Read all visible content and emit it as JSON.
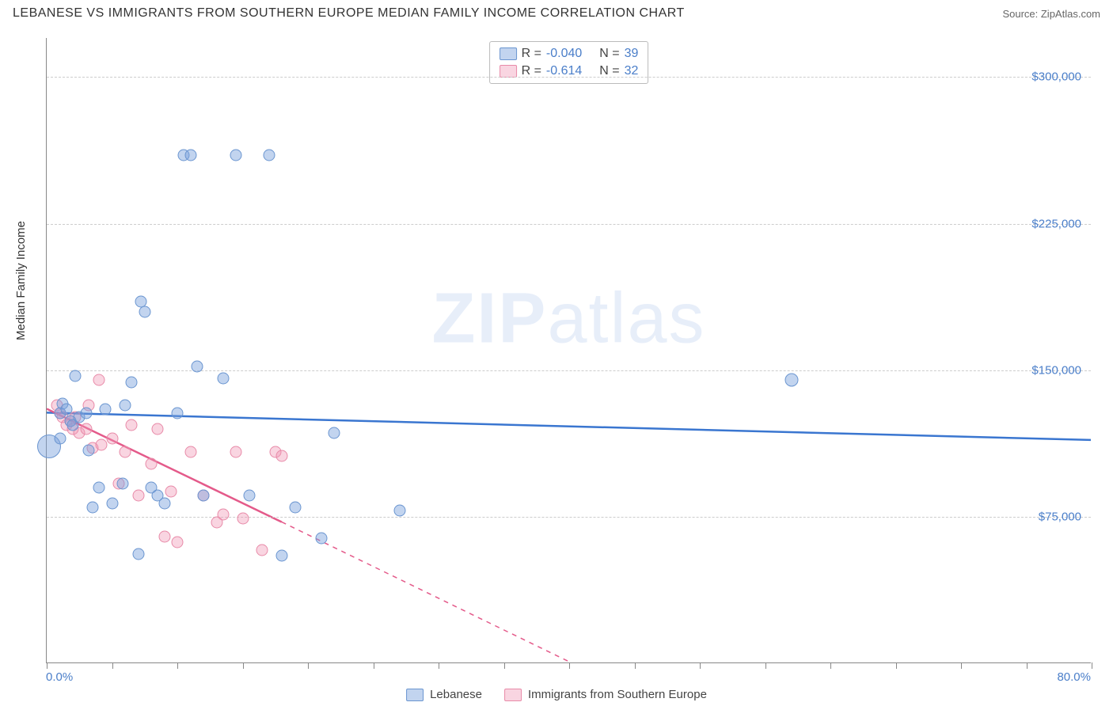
{
  "title": "LEBANESE VS IMMIGRANTS FROM SOUTHERN EUROPE MEDIAN FAMILY INCOME CORRELATION CHART",
  "source": "Source: ZipAtlas.com",
  "watermark_zip": "ZIP",
  "watermark_atlas": "atlas",
  "ylabel": "Median Family Income",
  "axes": {
    "xlim": [
      0,
      80
    ],
    "ylim": [
      0,
      320000
    ],
    "xticks_pct": [
      0,
      5,
      10,
      15,
      20,
      25,
      30,
      35,
      40,
      45,
      50,
      55,
      60,
      65,
      70,
      75,
      80
    ],
    "x_min_label": "0.0%",
    "x_max_label": "80.0%",
    "yticks": [
      {
        "value": 75000,
        "label": "$75,000"
      },
      {
        "value": 150000,
        "label": "$150,000"
      },
      {
        "value": 225000,
        "label": "$225,000"
      },
      {
        "value": 300000,
        "label": "$300,000"
      }
    ],
    "grid_color": "#cccccc",
    "border_color": "#888888",
    "tick_label_color": "#4a7ec9"
  },
  "legend_top": {
    "rows": [
      {
        "swatch": "blue",
        "r_label": "R =",
        "r": "-0.040",
        "n_label": "N =",
        "n": "39"
      },
      {
        "swatch": "pink",
        "r_label": "R =",
        "r": "-0.614",
        "n_label": "N =",
        "n": "32"
      }
    ]
  },
  "legend_bottom": {
    "items": [
      {
        "swatch": "blue",
        "label": "Lebanese"
      },
      {
        "swatch": "pink",
        "label": "Immigrants from Southern Europe"
      }
    ]
  },
  "series": {
    "blue": {
      "color_fill": "rgba(120,160,220,0.45)",
      "color_stroke": "#6a95d0",
      "marker_size_px": 15,
      "trend": {
        "x1_pct": 0,
        "y1": 128000,
        "x2_pct": 80,
        "y2": 114000,
        "color": "#3a76d0",
        "width": 2.5,
        "dash_after_pct": null
      },
      "points": [
        {
          "x": 1.0,
          "y": 128000
        },
        {
          "x": 1.2,
          "y": 133000
        },
        {
          "x": 1.5,
          "y": 130000
        },
        {
          "x": 1.8,
          "y": 124000
        },
        {
          "x": 2.0,
          "y": 122000
        },
        {
          "x": 2.2,
          "y": 147000
        },
        {
          "x": 2.5,
          "y": 126000
        },
        {
          "x": 3.0,
          "y": 128000
        },
        {
          "x": 3.2,
          "y": 109000
        },
        {
          "x": 3.5,
          "y": 80000
        },
        {
          "x": 4.0,
          "y": 90000
        },
        {
          "x": 4.5,
          "y": 130000
        },
        {
          "x": 5.0,
          "y": 82000
        },
        {
          "x": 5.8,
          "y": 92000
        },
        {
          "x": 6.0,
          "y": 132000
        },
        {
          "x": 6.5,
          "y": 144000
        },
        {
          "x": 7.0,
          "y": 56000
        },
        {
          "x": 7.2,
          "y": 185000
        },
        {
          "x": 7.5,
          "y": 180000
        },
        {
          "x": 8.0,
          "y": 90000
        },
        {
          "x": 8.5,
          "y": 86000
        },
        {
          "x": 9.0,
          "y": 82000
        },
        {
          "x": 10.0,
          "y": 128000
        },
        {
          "x": 10.5,
          "y": 260000
        },
        {
          "x": 11.0,
          "y": 260000
        },
        {
          "x": 11.5,
          "y": 152000
        },
        {
          "x": 12.0,
          "y": 86000
        },
        {
          "x": 13.5,
          "y": 146000
        },
        {
          "x": 14.5,
          "y": 260000
        },
        {
          "x": 15.5,
          "y": 86000
        },
        {
          "x": 17.0,
          "y": 260000
        },
        {
          "x": 18.0,
          "y": 55000
        },
        {
          "x": 19.0,
          "y": 80000
        },
        {
          "x": 21.0,
          "y": 64000
        },
        {
          "x": 22.0,
          "y": 118000
        },
        {
          "x": 27.0,
          "y": 78000
        },
        {
          "x": 57.0,
          "y": 145000,
          "sz": 17
        },
        {
          "x": 0.2,
          "y": 111000,
          "sz": 30
        },
        {
          "x": 1.0,
          "y": 115000
        }
      ]
    },
    "pink": {
      "color_fill": "rgba(240,150,180,0.4)",
      "color_stroke": "#e88aa8",
      "marker_size_px": 15,
      "trend": {
        "x1_pct": 0,
        "y1": 130000,
        "x2_pct": 18,
        "y2": 72000,
        "x3_pct": 42,
        "y3": -6000,
        "color": "#e45a8a",
        "width": 2.5
      },
      "points": [
        {
          "x": 0.8,
          "y": 132000
        },
        {
          "x": 1.0,
          "y": 128000
        },
        {
          "x": 1.2,
          "y": 126000
        },
        {
          "x": 1.5,
          "y": 122000
        },
        {
          "x": 1.8,
          "y": 124000
        },
        {
          "x": 2.0,
          "y": 120000
        },
        {
          "x": 2.2,
          "y": 126000
        },
        {
          "x": 2.5,
          "y": 118000
        },
        {
          "x": 3.0,
          "y": 120000
        },
        {
          "x": 3.2,
          "y": 132000
        },
        {
          "x": 3.5,
          "y": 110000
        },
        {
          "x": 4.0,
          "y": 145000
        },
        {
          "x": 4.2,
          "y": 112000
        },
        {
          "x": 5.0,
          "y": 115000
        },
        {
          "x": 5.5,
          "y": 92000
        },
        {
          "x": 6.0,
          "y": 108000
        },
        {
          "x": 6.5,
          "y": 122000
        },
        {
          "x": 7.0,
          "y": 86000
        },
        {
          "x": 8.0,
          "y": 102000
        },
        {
          "x": 8.5,
          "y": 120000
        },
        {
          "x": 9.0,
          "y": 65000
        },
        {
          "x": 9.5,
          "y": 88000
        },
        {
          "x": 10.0,
          "y": 62000
        },
        {
          "x": 11.0,
          "y": 108000
        },
        {
          "x": 12.0,
          "y": 86000
        },
        {
          "x": 13.0,
          "y": 72000
        },
        {
          "x": 13.5,
          "y": 76000
        },
        {
          "x": 14.5,
          "y": 108000
        },
        {
          "x": 15.0,
          "y": 74000
        },
        {
          "x": 16.5,
          "y": 58000
        },
        {
          "x": 17.5,
          "y": 108000
        },
        {
          "x": 18.0,
          "y": 106000
        }
      ]
    }
  }
}
